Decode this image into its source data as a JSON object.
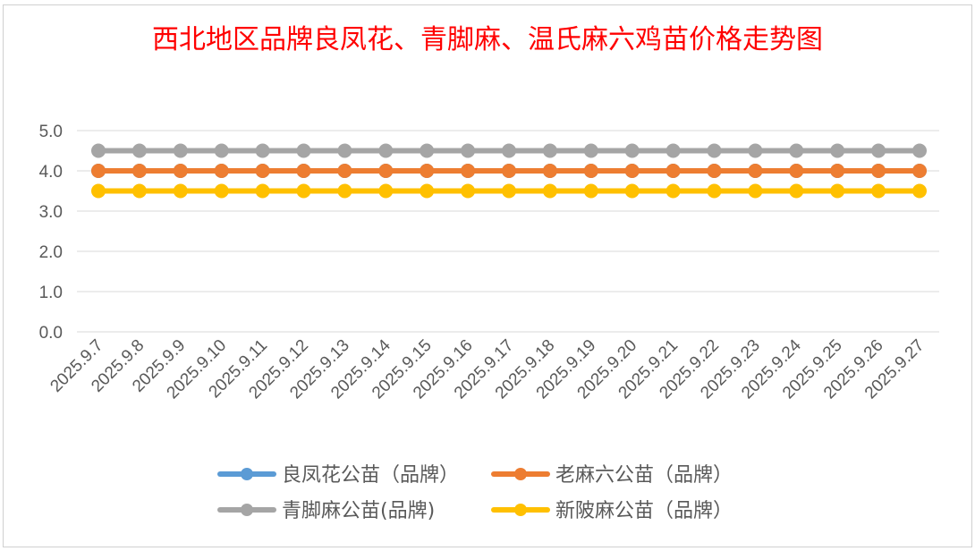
{
  "chart_data": {
    "type": "line",
    "title": "西北地区品牌良凤花、青脚麻、温氏麻六鸡苗价格走势图",
    "xlabel": "",
    "ylabel": "",
    "ylim": [
      0,
      5
    ],
    "yticks": [
      "0.0",
      "1.0",
      "2.0",
      "3.0",
      "4.0",
      "5.0"
    ],
    "grid": true,
    "legend_position": "bottom",
    "categories": [
      "2025.9.7",
      "2025.9.8",
      "2025.9.9",
      "2025.9.10",
      "2025.9.11",
      "2025.9.12",
      "2025.9.13",
      "2025.9.14",
      "2025.9.15",
      "2025.9.16",
      "2025.9.17",
      "2025.9.18",
      "2025.9.19",
      "2025.9.20",
      "2025.9.21",
      "2025.9.22",
      "2025.9.23",
      "2025.9.24",
      "2025.9.25",
      "2025.9.26",
      "2025.9.27"
    ],
    "series": [
      {
        "name": "良凤花公苗（品牌）",
        "color": "#5b9bd5",
        "values": [
          4,
          4,
          4,
          4,
          4,
          4,
          4,
          4,
          4,
          4,
          4,
          4,
          4,
          4,
          4,
          4,
          4,
          4,
          4,
          4,
          4
        ]
      },
      {
        "name": "老麻六公苗（品牌）",
        "color": "#ed7d31",
        "values": [
          4,
          4,
          4,
          4,
          4,
          4,
          4,
          4,
          4,
          4,
          4,
          4,
          4,
          4,
          4,
          4,
          4,
          4,
          4,
          4,
          4
        ]
      },
      {
        "name": "青脚麻公苗(品牌)",
        "color": "#a5a5a5",
        "values": [
          4.5,
          4.5,
          4.5,
          4.5,
          4.5,
          4.5,
          4.5,
          4.5,
          4.5,
          4.5,
          4.5,
          4.5,
          4.5,
          4.5,
          4.5,
          4.5,
          4.5,
          4.5,
          4.5,
          4.5,
          4.5
        ]
      },
      {
        "name": "新陂麻公苗（品牌）",
        "color": "#ffc000",
        "values": [
          3.5,
          3.5,
          3.5,
          3.5,
          3.5,
          3.5,
          3.5,
          3.5,
          3.5,
          3.5,
          3.5,
          3.5,
          3.5,
          3.5,
          3.5,
          3.5,
          3.5,
          3.5,
          3.5,
          3.5,
          3.5
        ]
      }
    ]
  }
}
